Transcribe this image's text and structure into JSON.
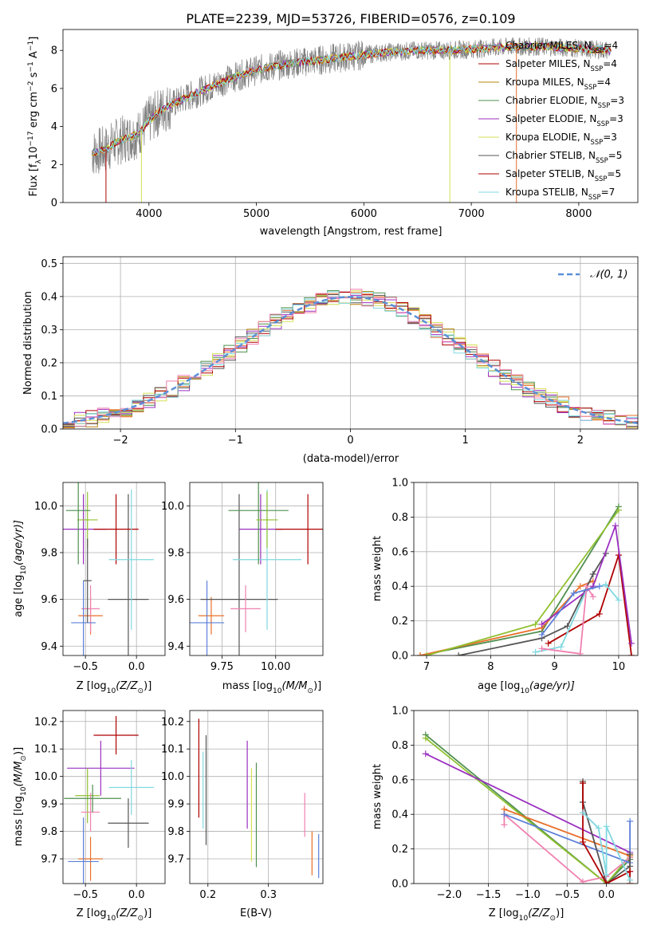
{
  "figure": {
    "title": "PLATE=2239, MJD=53726, FIBERID=0576, z=0.109"
  },
  "colors": {
    "palette": [
      "#808080",
      "#e8702a",
      "#b8860b",
      "#4f8f4f",
      "#9b30c0",
      "#d4e157",
      "#555555",
      "#b00000",
      "#80d8e0",
      "#f080b0",
      "#5b7fd8",
      "#90c030"
    ],
    "grid": "#b0b0b0",
    "gauss": "#5b8fd6"
  },
  "chart_data": [
    {
      "id": "spectrum",
      "type": "line",
      "xlabel": "wavelength [Angstrom, rest frame]",
      "ylabel": "Flux [f",
      "ylabel_sub": "λ",
      "ylabel_tail": "10",
      "ylabel_exp": "−17",
      "ylabel_units": " erg cm",
      "ylabel_units_exp": "−2",
      "ylabel_s": " s",
      "ylabel_s_exp": "−1",
      "ylabel_a": " A",
      "ylabel_a_exp": "−1",
      "ylabel_end": "]",
      "xlim": [
        3200,
        8550
      ],
      "ylim": [
        0,
        9.1
      ],
      "xticks": [
        4000,
        5000,
        6000,
        7000,
        8000
      ],
      "yticks": [
        0,
        2,
        4,
        6,
        8
      ],
      "xrange_data": [
        3470,
        8300
      ],
      "model_knots_x": [
        3470,
        3600,
        3700,
        3800,
        3900,
        4000,
        4100,
        4300,
        4500,
        4700,
        4900,
        5100,
        5300,
        5600,
        5900,
        6200,
        6500,
        6800,
        7100,
        7400,
        7700,
        8000,
        8300
      ],
      "model_knots_y": [
        2.6,
        2.8,
        3.2,
        3.4,
        3.6,
        4.3,
        4.8,
        5.4,
        5.9,
        6.4,
        6.8,
        7.1,
        7.3,
        7.5,
        7.7,
        7.9,
        8.0,
        8.0,
        8.1,
        8.2,
        8.2,
        8.1,
        8.0
      ],
      "legend_position": "top-right",
      "legend": [
        {
          "label": "Chabrier MILES, N",
          "sub": "SSP",
          "tail": "=4"
        },
        {
          "label": "Salpeter MILES, N",
          "sub": "SSP",
          "tail": "=4"
        },
        {
          "label": "Kroupa MILES, N",
          "sub": "SSP",
          "tail": "=4"
        },
        {
          "label": "Chabrier ELODIE, N",
          "sub": "SSP",
          "tail": "=3"
        },
        {
          "label": "Salpeter ELODIE, N",
          "sub": "SSP",
          "tail": "=3"
        },
        {
          "label": "Kroupa ELODIE, N",
          "sub": "SSP",
          "tail": "=3"
        },
        {
          "label": "Chabrier STELIB, N",
          "sub": "SSP",
          "tail": "=5"
        },
        {
          "label": "Salpeter STELIB, N",
          "sub": "SSP",
          "tail": "=5"
        },
        {
          "label": "Kroupa STELIB, N",
          "sub": "SSP",
          "tail": "=7"
        }
      ]
    },
    {
      "id": "residuals",
      "type": "bar",
      "xlabel": "(data-model)/error",
      "ylabel": "Normed distribution",
      "xlim": [
        -2.5,
        2.5
      ],
      "ylim": [
        0,
        0.52
      ],
      "xticks": [
        -2,
        -1,
        0,
        1,
        2
      ],
      "xtick_labels": [
        "−2",
        "−1",
        "0",
        "1",
        "2"
      ],
      "yticks": [
        0.0,
        0.1,
        0.2,
        0.3,
        0.4,
        0.5
      ],
      "ytick_labels": [
        "0.0",
        "0.1",
        "0.2",
        "0.3",
        "0.4",
        "0.5"
      ],
      "bin_width": 0.1,
      "legend_label": "𝒩(0, 1)",
      "legend_position": "top-right",
      "grid": true
    },
    {
      "id": "age_vs_Z",
      "type": "scatter",
      "xlabel": "Z [log",
      "xlabel_sub": "10",
      "xlabel_tail": "(Z/Z",
      "xlabel_sub2": "⊙",
      "xlabel_end": ")]",
      "ylabel": "age  [log",
      "ylabel_sub": "10",
      "ylabel_tail": "(age/yr)]",
      "xlim": [
        -0.72,
        0.28
      ],
      "ylim": [
        9.36,
        10.1
      ],
      "xticks": [
        -0.5,
        0.0
      ],
      "xtick_labels": [
        "−0.5",
        "0.0"
      ],
      "yticks": [
        9.4,
        9.6,
        9.8,
        10.0
      ],
      "ytick_labels": [
        "9.4",
        "9.6",
        "9.8",
        "10.0"
      ],
      "points": [
        {
          "x": -0.45,
          "y": 9.53,
          "xerr": 0.12,
          "yerr": 0.08,
          "c": 1
        },
        {
          "x": -0.52,
          "y": 9.9,
          "xerr": 0.22,
          "yerr": 0.15,
          "c": 4
        },
        {
          "x": -0.08,
          "y": 9.6,
          "xerr": 0.2,
          "yerr": 0.45,
          "c": 6
        },
        {
          "x": -0.2,
          "y": 9.9,
          "xerr": 0.22,
          "yerr": 0.15,
          "c": 7
        },
        {
          "x": -0.05,
          "y": 9.77,
          "xerr": 0.22,
          "yerr": 0.3,
          "c": 8
        },
        {
          "x": -0.45,
          "y": 9.56,
          "xerr": 0.09,
          "yerr": 0.1,
          "c": 9
        },
        {
          "x": -0.52,
          "y": 9.5,
          "xerr": 0.12,
          "yerr": 0.18,
          "c": 10
        },
        {
          "x": -0.48,
          "y": 9.94,
          "xerr": 0.1,
          "yerr": 0.12,
          "c": 11
        },
        {
          "x": -0.57,
          "y": 9.98,
          "xerr": 0.12,
          "yerr": 0.23,
          "c": 3
        },
        {
          "x": -0.48,
          "y": 9.68,
          "xerr": 0.04,
          "yerr": 0.18,
          "c": 6
        }
      ]
    },
    {
      "id": "age_vs_mass",
      "type": "scatter",
      "xlabel": "mass [log",
      "xlabel_sub": "10",
      "xlabel_tail": "(M/M",
      "xlabel_sub2": "⊙",
      "xlabel_end": ")]",
      "xlim": [
        9.6,
        10.22
      ],
      "ylim": [
        9.36,
        10.1
      ],
      "xticks": [
        9.75,
        10.0
      ],
      "xtick_labels": [
        "9.75",
        "10.00"
      ],
      "yticks": [
        9.4,
        9.6,
        9.8,
        10.0
      ],
      "ytick_labels": [
        "9.4",
        "9.6",
        "9.8",
        "10.0"
      ],
      "points": [
        {
          "x": 9.7,
          "y": 9.53,
          "xerr": 0.06,
          "yerr": 0.08,
          "c": 1
        },
        {
          "x": 9.68,
          "y": 9.5,
          "xerr": 0.08,
          "yerr": 0.18,
          "c": 10
        },
        {
          "x": 9.93,
          "y": 9.9,
          "xerr": 0.1,
          "yerr": 0.15,
          "c": 4
        },
        {
          "x": 9.83,
          "y": 9.6,
          "xerr": 0.18,
          "yerr": 0.45,
          "c": 6
        },
        {
          "x": 10.15,
          "y": 9.9,
          "xerr": 0.15,
          "yerr": 0.15,
          "c": 7
        },
        {
          "x": 9.96,
          "y": 9.77,
          "xerr": 0.16,
          "yerr": 0.3,
          "c": 8
        },
        {
          "x": 9.86,
          "y": 9.56,
          "xerr": 0.07,
          "yerr": 0.1,
          "c": 9
        },
        {
          "x": 9.92,
          "y": 9.98,
          "xerr": 0.14,
          "yerr": 0.23,
          "c": 3
        },
        {
          "x": 9.96,
          "y": 9.94,
          "xerr": 0.05,
          "yerr": 0.12,
          "c": 11
        }
      ]
    },
    {
      "id": "weight_vs_age",
      "type": "line",
      "xlabel": "age  [log",
      "xlabel_sub": "10",
      "xlabel_tail": "(age/yr)]",
      "ylabel": "mass weight",
      "xlim": [
        6.8,
        10.3
      ],
      "ylim": [
        0,
        1.0
      ],
      "xticks": [
        7,
        8,
        9,
        10
      ],
      "yticks": [
        0.0,
        0.2,
        0.4,
        0.6,
        0.8,
        1.0
      ],
      "ytick_labels": [
        "0.0",
        "0.2",
        "0.4",
        "0.6",
        "0.8",
        "1.0"
      ],
      "grid": true,
      "series": [
        {
          "c": 3,
          "x": [
            6.9,
            8.8,
            10.0
          ],
          "y": [
            0.0,
            0.14,
            0.86
          ]
        },
        {
          "c": 1,
          "x": [
            6.9,
            8.8,
            9.4,
            9.6
          ],
          "y": [
            0.0,
            0.16,
            0.4,
            0.43
          ]
        },
        {
          "c": 11,
          "x": [
            7.0,
            8.7,
            10.0
          ],
          "y": [
            0.0,
            0.18,
            0.84
          ]
        },
        {
          "c": 6,
          "x": [
            7.5,
            8.8,
            9.2,
            9.6,
            9.8
          ],
          "y": [
            0.0,
            0.1,
            0.17,
            0.47,
            0.59
          ]
        },
        {
          "c": 7,
          "x": [
            8.9,
            9.7,
            10.0,
            10.2
          ],
          "y": [
            0.07,
            0.24,
            0.58,
            0.0
          ]
        },
        {
          "c": 4,
          "x": [
            8.8,
            9.6,
            9.95,
            10.2
          ],
          "y": [
            0.18,
            0.4,
            0.75,
            0.07
          ]
        },
        {
          "c": 8,
          "x": [
            8.7,
            9.1,
            9.5,
            9.8,
            10.0
          ],
          "y": [
            0.02,
            0.05,
            0.38,
            0.41,
            0.32
          ]
        },
        {
          "c": 9,
          "x": [
            8.8,
            9.4,
            9.5,
            9.6
          ],
          "y": [
            0.04,
            0.01,
            0.4,
            0.34
          ]
        },
        {
          "c": 10,
          "x": [
            8.8,
            9.3,
            9.7
          ],
          "y": [
            0.12,
            0.36,
            0.4
          ]
        }
      ]
    },
    {
      "id": "mass_vs_Z",
      "type": "scatter",
      "xlabel": "Z [log",
      "xlabel_sub": "10",
      "xlabel_tail": "(Z/Z",
      "xlabel_sub2": "⊙",
      "xlabel_end": ")]",
      "ylabel": "mass [log",
      "ylabel_sub": "10",
      "ylabel_tail": "(M/M",
      "ylabel_sub2": "⊙",
      "ylabel_end": ")]",
      "xlim": [
        -0.72,
        0.28
      ],
      "ylim": [
        9.61,
        10.24
      ],
      "xticks": [
        -0.5,
        0.0
      ],
      "xtick_labels": [
        "−0.5",
        "0.0"
      ],
      "yticks": [
        9.7,
        9.8,
        9.9,
        10.0,
        10.1,
        10.2
      ],
      "ytick_labels": [
        "9.7",
        "9.8",
        "9.9",
        "10.0",
        "10.1",
        "10.2"
      ],
      "points": [
        {
          "x": -0.45,
          "y": 9.7,
          "xerr": 0.12,
          "yerr": 0.08,
          "c": 1
        },
        {
          "x": -0.52,
          "y": 9.69,
          "xerr": 0.15,
          "yerr": 0.16,
          "c": 10
        },
        {
          "x": -0.35,
          "y": 10.03,
          "xerr": 0.33,
          "yerr": 0.1,
          "c": 4
        },
        {
          "x": -0.48,
          "y": 9.93,
          "xerr": 0.12,
          "yerr": 0.1,
          "c": 11
        },
        {
          "x": -0.45,
          "y": 9.87,
          "xerr": 0.09,
          "yerr": 0.07,
          "c": 9
        },
        {
          "x": -0.08,
          "y": 9.83,
          "xerr": 0.2,
          "yerr": 0.09,
          "c": 6
        },
        {
          "x": -0.2,
          "y": 10.15,
          "xerr": 0.22,
          "yerr": 0.07,
          "c": 7
        },
        {
          "x": -0.05,
          "y": 9.96,
          "xerr": 0.22,
          "yerr": 0.1,
          "c": 8
        },
        {
          "x": -0.43,
          "y": 9.92,
          "xerr": 0.28,
          "yerr": 0.05,
          "c": 3
        }
      ]
    },
    {
      "id": "mass_vs_EBV",
      "type": "scatter",
      "xlabel": "E(B-V)",
      "xlim": [
        0.17,
        0.39
      ],
      "ylim": [
        9.61,
        10.24
      ],
      "xticks": [
        0.2,
        0.3
      ],
      "xtick_labels": [
        "0.2",
        "0.3"
      ],
      "yticks": [
        9.7,
        9.8,
        9.9,
        10.0,
        10.1,
        10.2
      ],
      "ytick_labels": [
        "9.7",
        "9.8",
        "9.9",
        "10.0",
        "10.1",
        "10.2"
      ],
      "points": [
        {
          "x": 0.185,
          "y": 10.03,
          "xerr": 0,
          "yerr": 0.18,
          "c": 7
        },
        {
          "x": 0.192,
          "y": 9.95,
          "xerr": 0,
          "yerr": 0.14,
          "c": 8
        },
        {
          "x": 0.197,
          "y": 9.95,
          "xerr": 0,
          "yerr": 0.2,
          "c": 6
        },
        {
          "x": 0.265,
          "y": 9.97,
          "xerr": 0,
          "yerr": 0.16,
          "c": 4
        },
        {
          "x": 0.272,
          "y": 9.86,
          "xerr": 0,
          "yerr": 0.17,
          "c": 5
        },
        {
          "x": 0.28,
          "y": 9.86,
          "xerr": 0,
          "yerr": 0.19,
          "c": 3
        },
        {
          "x": 0.36,
          "y": 9.86,
          "xerr": 0,
          "yerr": 0.08,
          "c": 9
        },
        {
          "x": 0.372,
          "y": 9.72,
          "xerr": 0,
          "yerr": 0.08,
          "c": 1
        },
        {
          "x": 0.383,
          "y": 9.71,
          "xerr": 0,
          "yerr": 0.08,
          "c": 10
        }
      ]
    },
    {
      "id": "weight_vs_Z",
      "type": "line",
      "xlabel": "Z [log",
      "xlabel_sub": "10",
      "xlabel_tail": "(Z/Z",
      "xlabel_sub2": "⊙",
      "xlabel_end": ")]",
      "ylabel": "mass weight",
      "xlim": [
        -2.45,
        0.4
      ],
      "ylim": [
        0,
        1.0
      ],
      "xticks": [
        -2.0,
        -1.5,
        -1.0,
        -0.5,
        0.0
      ],
      "xtick_labels": [
        "−2.0",
        "−1.5",
        "−1.0",
        "−0.5",
        "0.0"
      ],
      "yticks": [
        0.0,
        0.2,
        0.4,
        0.6,
        0.8,
        1.0
      ],
      "ytick_labels": [
        "0.0",
        "0.2",
        "0.4",
        "0.6",
        "0.8",
        "1.0"
      ],
      "grid": true,
      "series": [
        {
          "c": 3,
          "x": [
            -2.3,
            0.0,
            0.3
          ],
          "y": [
            0.86,
            0.0,
            0.14
          ]
        },
        {
          "c": 11,
          "x": [
            -2.3,
            0.0,
            0.3
          ],
          "y": [
            0.84,
            0.0,
            0.16
          ]
        },
        {
          "c": 4,
          "x": [
            -2.3,
            0.3,
            0.3
          ],
          "y": [
            0.75,
            0.18,
            0.07
          ]
        },
        {
          "c": 1,
          "x": [
            -1.3,
            -1.3,
            0.3,
            0.3
          ],
          "y": [
            0.4,
            0.43,
            0.16,
            0.0
          ]
        },
        {
          "c": 9,
          "x": [
            -1.3,
            -1.3,
            -0.3,
            0.0,
            0.3
          ],
          "y": [
            0.34,
            0.4,
            0.01,
            0.04,
            0.15
          ]
        },
        {
          "c": 10,
          "x": [
            -1.3,
            0.3,
            0.3
          ],
          "y": [
            0.4,
            0.12,
            0.36
          ]
        },
        {
          "c": 6,
          "x": [
            -0.3,
            -0.3,
            0.0,
            0.3,
            0.3
          ],
          "y": [
            0.59,
            0.47,
            0.0,
            0.1,
            0.17
          ]
        },
        {
          "c": 7,
          "x": [
            -0.3,
            -0.3,
            0.0,
            0.3,
            0.3
          ],
          "y": [
            0.58,
            0.24,
            0.0,
            0.07,
            0.0
          ]
        },
        {
          "c": 8,
          "x": [
            -0.3,
            -0.1,
            0.0,
            0.0,
            0.3
          ],
          "y": [
            0.41,
            0.32,
            0.05,
            0.33,
            0.02
          ]
        }
      ]
    }
  ]
}
